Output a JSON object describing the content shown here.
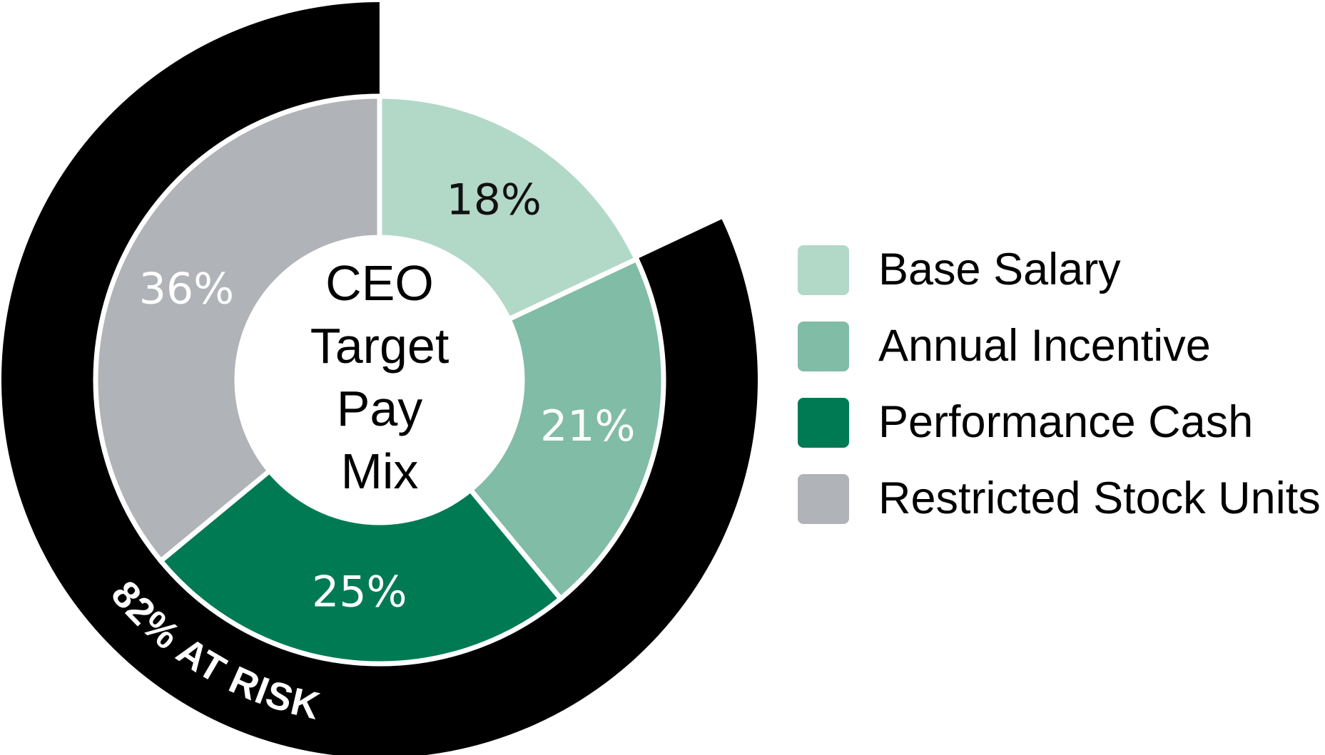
{
  "chart_data": {
    "type": "pie",
    "title": "CEO Target Pay Mix",
    "title_lines": [
      "CEO",
      "Target",
      "Pay",
      "Mix"
    ],
    "categories": [
      "Base Salary",
      "Annual Incentive",
      "Performance Cash",
      "Restricted Stock Units"
    ],
    "values": [
      18,
      21,
      25,
      36
    ],
    "labels": [
      "18%",
      "21%",
      "25%",
      "36%"
    ],
    "colors": [
      "#b2d8c8",
      "#80bca6",
      "#007a53",
      "#b0b3b7"
    ],
    "label_colors": [
      "#111111",
      "#ffffff",
      "#ffffff",
      "#ffffff"
    ],
    "outer_ring": {
      "label": "82% AT RISK",
      "value": 82,
      "color": "#000000"
    },
    "legend_position": "right"
  }
}
